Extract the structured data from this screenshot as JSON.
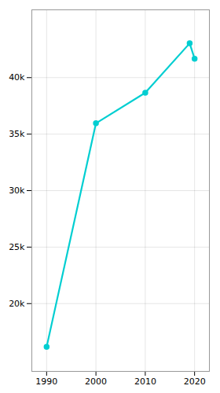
{
  "chart_data": {
    "type": "line",
    "x": [
      1990,
      2000,
      2010,
      2019,
      2020
    ],
    "values": [
      16166,
      35958,
      38659,
      43035,
      41675
    ],
    "color": "#00CED1",
    "marker": "circle",
    "xlim": [
      1987,
      2023
    ],
    "xticks": [
      1990,
      2000,
      2010,
      2020
    ],
    "ylim": [
      14000,
      46000
    ],
    "yticks": [
      {
        "value": 20000,
        "label": "20k"
      },
      {
        "value": 25000,
        "label": "25k"
      },
      {
        "value": 30000,
        "label": "30k"
      },
      {
        "value": 35000,
        "label": "35k"
      },
      {
        "value": 40000,
        "label": "40k"
      }
    ],
    "grid": true
  }
}
